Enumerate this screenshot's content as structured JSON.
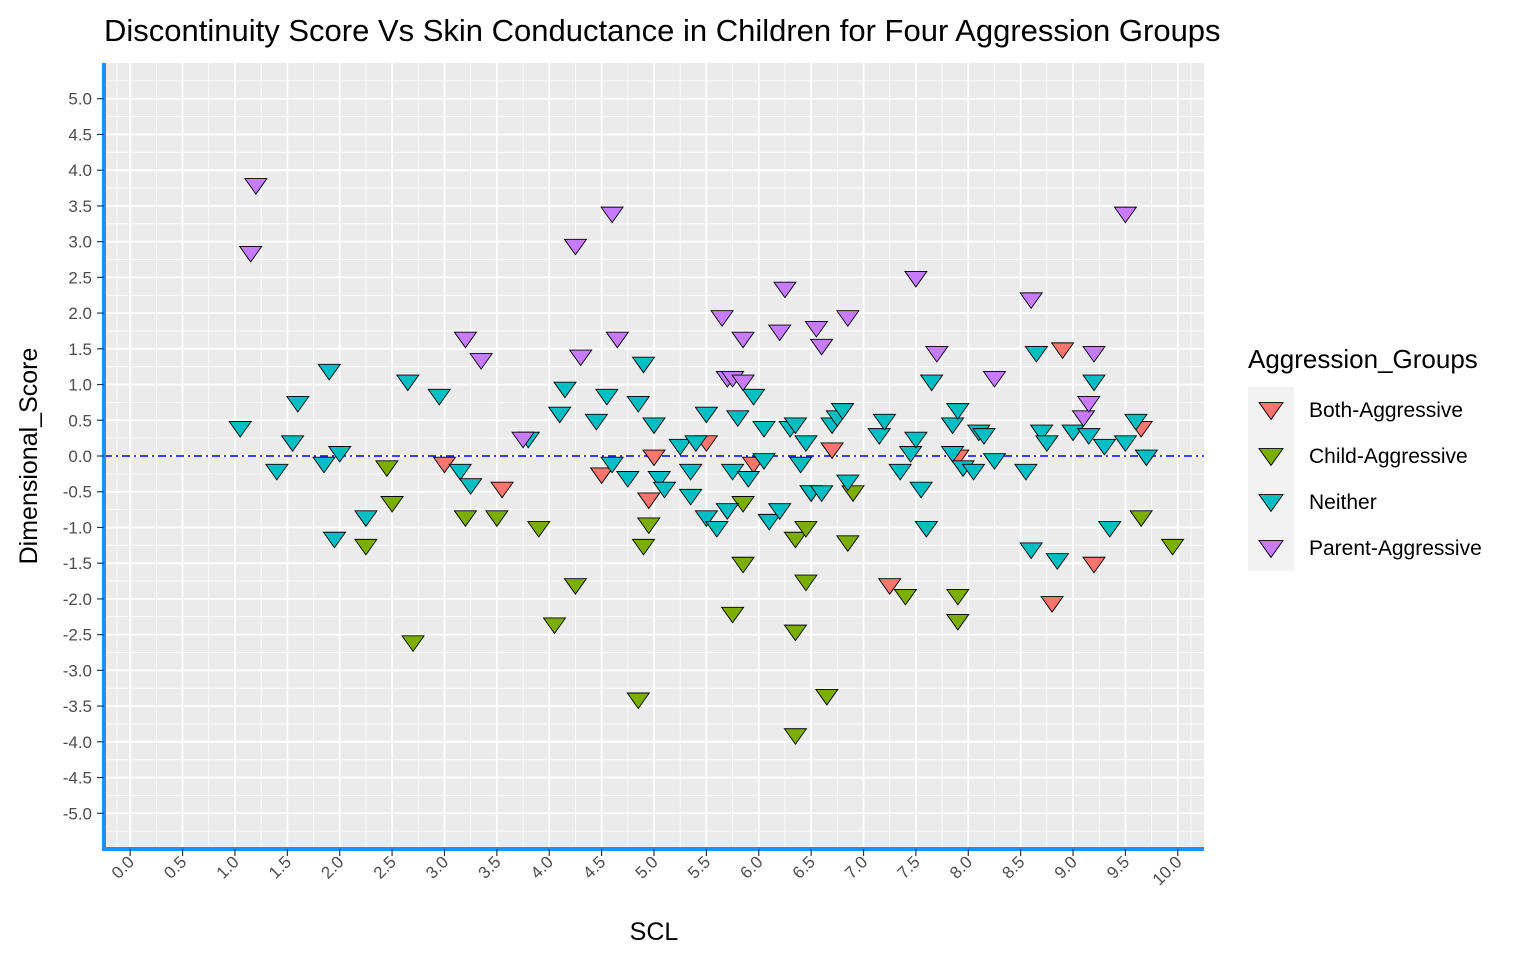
{
  "chart_data": {
    "type": "scatter",
    "title": "Discontinuity Score Vs Skin Conductance in Children for Four Aggression Groups",
    "xlabel": "SCL",
    "ylabel": "Dimensional_Score",
    "xlim": [
      -0.25,
      10.25
    ],
    "ylim": [
      -5.5,
      5.5
    ],
    "x_ticks": [
      "0.0",
      "0.5",
      "1.0",
      "1.5",
      "2.0",
      "2.5",
      "3.0",
      "3.5",
      "4.0",
      "4.5",
      "5.0",
      "5.5",
      "6.0",
      "6.5",
      "7.0",
      "7.5",
      "8.0",
      "8.5",
      "9.0",
      "9.5",
      "10.0"
    ],
    "y_ticks": [
      "-5.0",
      "-4.5",
      "-4.0",
      "-3.5",
      "-3.0",
      "-2.5",
      "-2.0",
      "-1.5",
      "-1.0",
      "-0.5",
      "0.0",
      "0.5",
      "1.0",
      "1.5",
      "2.0",
      "2.5",
      "3.0",
      "3.5",
      "4.0",
      "4.5",
      "5.0"
    ],
    "reference_line": {
      "y": 0,
      "style": "dash-dot",
      "color": "#0000ff"
    },
    "grid": true,
    "marker": "triangle-down",
    "legend": {
      "title": "Aggression_Groups",
      "placement": "right",
      "entries": [
        "Both-Aggressive",
        "Child-Aggressive",
        "Neither",
        "Parent-Aggressive"
      ]
    },
    "series": [
      {
        "name": "Both-Aggressive",
        "color": "#F8766D",
        "points": [
          [
            3.0,
            -0.1
          ],
          [
            3.55,
            -0.45
          ],
          [
            4.5,
            -0.25
          ],
          [
            4.95,
            -0.6
          ],
          [
            5.0,
            0.0
          ],
          [
            5.5,
            0.2
          ],
          [
            5.95,
            -0.1
          ],
          [
            6.7,
            0.1
          ],
          [
            7.25,
            -1.8
          ],
          [
            7.9,
            0.0
          ],
          [
            8.9,
            1.5
          ],
          [
            8.8,
            -2.05
          ],
          [
            9.2,
            -1.5
          ],
          [
            9.65,
            0.4
          ]
        ]
      },
      {
        "name": "Child-Aggressive",
        "color": "#7CAE00",
        "points": [
          [
            2.25,
            -1.25
          ],
          [
            2.45,
            -0.15
          ],
          [
            2.5,
            -0.65
          ],
          [
            2.7,
            -2.6
          ],
          [
            3.2,
            -0.85
          ],
          [
            3.5,
            -0.85
          ],
          [
            3.9,
            -1.0
          ],
          [
            4.05,
            -2.35
          ],
          [
            4.25,
            -1.8
          ],
          [
            4.85,
            -3.4
          ],
          [
            4.9,
            -1.25
          ],
          [
            4.95,
            -0.95
          ],
          [
            5.75,
            -2.2
          ],
          [
            5.85,
            -0.65
          ],
          [
            5.85,
            -1.5
          ],
          [
            6.35,
            -2.45
          ],
          [
            6.35,
            -3.9
          ],
          [
            6.35,
            -1.15
          ],
          [
            6.45,
            -1.0
          ],
          [
            6.45,
            -1.75
          ],
          [
            6.5,
            -0.5
          ],
          [
            6.65,
            -3.35
          ],
          [
            6.85,
            -1.2
          ],
          [
            6.9,
            -0.5
          ],
          [
            7.4,
            -1.95
          ],
          [
            7.9,
            -1.95
          ],
          [
            7.9,
            -2.3
          ],
          [
            9.65,
            -0.85
          ],
          [
            9.95,
            -1.25
          ]
        ]
      },
      {
        "name": "Neither",
        "color": "#00BFC4",
        "points": [
          [
            1.05,
            0.4
          ],
          [
            1.4,
            -0.2
          ],
          [
            1.55,
            0.2
          ],
          [
            1.6,
            0.75
          ],
          [
            1.85,
            -0.1
          ],
          [
            1.9,
            1.2
          ],
          [
            1.95,
            -1.15
          ],
          [
            2.0,
            0.05
          ],
          [
            2.25,
            -0.85
          ],
          [
            2.65,
            1.05
          ],
          [
            2.95,
            0.85
          ],
          [
            3.15,
            -0.2
          ],
          [
            3.25,
            -0.4
          ],
          [
            3.8,
            0.25
          ],
          [
            4.1,
            0.6
          ],
          [
            4.15,
            0.95
          ],
          [
            4.45,
            0.5
          ],
          [
            4.55,
            0.85
          ],
          [
            4.6,
            -0.1
          ],
          [
            4.75,
            -0.3
          ],
          [
            4.85,
            0.75
          ],
          [
            4.9,
            1.3
          ],
          [
            5.0,
            0.45
          ],
          [
            5.05,
            -0.3
          ],
          [
            5.1,
            -0.45
          ],
          [
            5.25,
            0.15
          ],
          [
            5.35,
            -0.2
          ],
          [
            5.35,
            -0.55
          ],
          [
            5.4,
            0.2
          ],
          [
            5.5,
            0.6
          ],
          [
            5.5,
            -0.85
          ],
          [
            5.6,
            -1.0
          ],
          [
            5.7,
            -0.75
          ],
          [
            5.75,
            -0.2
          ],
          [
            5.8,
            0.55
          ],
          [
            5.9,
            -0.3
          ],
          [
            5.95,
            0.85
          ],
          [
            6.05,
            0.4
          ],
          [
            6.05,
            -0.05
          ],
          [
            6.1,
            -0.9
          ],
          [
            6.2,
            -0.75
          ],
          [
            6.3,
            0.4
          ],
          [
            6.35,
            0.45
          ],
          [
            6.4,
            -0.1
          ],
          [
            6.45,
            0.2
          ],
          [
            6.5,
            -0.5
          ],
          [
            6.6,
            -0.5
          ],
          [
            6.7,
            0.45
          ],
          [
            6.75,
            0.55
          ],
          [
            6.8,
            0.65
          ],
          [
            6.85,
            -0.35
          ],
          [
            7.15,
            0.3
          ],
          [
            7.2,
            0.5
          ],
          [
            7.35,
            -0.2
          ],
          [
            7.45,
            0.05
          ],
          [
            7.5,
            0.25
          ],
          [
            7.55,
            -0.45
          ],
          [
            7.6,
            -1.0
          ],
          [
            7.65,
            1.05
          ],
          [
            7.85,
            0.05
          ],
          [
            7.85,
            0.45
          ],
          [
            7.9,
            0.65
          ],
          [
            7.95,
            -0.15
          ],
          [
            8.05,
            -0.2
          ],
          [
            8.1,
            0.35
          ],
          [
            8.15,
            0.3
          ],
          [
            8.25,
            -0.05
          ],
          [
            8.55,
            -0.2
          ],
          [
            8.6,
            -1.3
          ],
          [
            8.65,
            1.45
          ],
          [
            8.7,
            0.35
          ],
          [
            8.75,
            0.2
          ],
          [
            8.85,
            -1.45
          ],
          [
            9.0,
            0.35
          ],
          [
            9.15,
            0.3
          ],
          [
            9.2,
            1.05
          ],
          [
            9.3,
            0.15
          ],
          [
            9.35,
            -1.0
          ],
          [
            9.5,
            0.2
          ],
          [
            9.6,
            0.5
          ],
          [
            9.7,
            0.0
          ]
        ]
      },
      {
        "name": "Parent-Aggressive",
        "color": "#C77CFF",
        "points": [
          [
            1.2,
            3.8
          ],
          [
            1.15,
            2.85
          ],
          [
            3.2,
            1.65
          ],
          [
            3.35,
            1.35
          ],
          [
            3.75,
            0.25
          ],
          [
            4.25,
            2.95
          ],
          [
            4.3,
            1.4
          ],
          [
            4.6,
            3.4
          ],
          [
            4.65,
            1.65
          ],
          [
            5.65,
            1.95
          ],
          [
            5.7,
            1.1
          ],
          [
            5.75,
            1.1
          ],
          [
            5.85,
            1.65
          ],
          [
            5.85,
            1.05
          ],
          [
            6.2,
            1.75
          ],
          [
            6.25,
            2.35
          ],
          [
            6.55,
            1.8
          ],
          [
            6.6,
            1.55
          ],
          [
            6.85,
            1.95
          ],
          [
            7.5,
            2.5
          ],
          [
            7.7,
            1.45
          ],
          [
            8.25,
            1.1
          ],
          [
            8.6,
            2.2
          ],
          [
            9.1,
            0.55
          ],
          [
            9.15,
            0.75
          ],
          [
            9.2,
            1.45
          ],
          [
            9.5,
            3.4
          ]
        ]
      }
    ]
  }
}
